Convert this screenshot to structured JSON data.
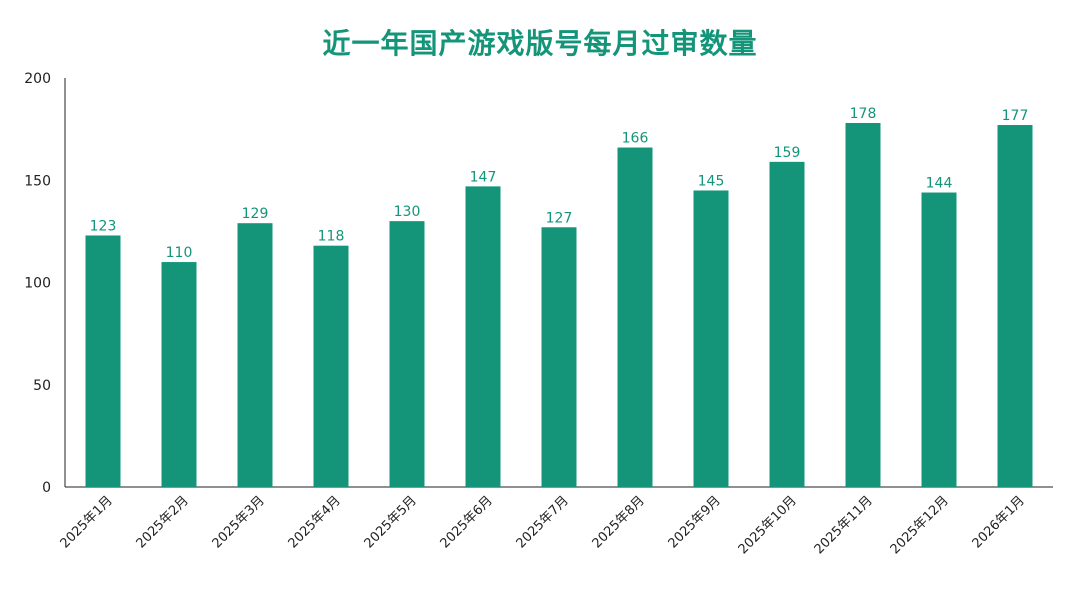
{
  "title": "近一年国产游戏版号每月过审数量",
  "colors": {
    "bar": "#14957a",
    "title": "#14957a",
    "axis": "#222222",
    "data_label": "#14957a"
  },
  "chart_data": {
    "type": "bar",
    "title": "近一年国产游戏版号每月过审数量",
    "categories": [
      "2025年1月",
      "2025年2月",
      "2025年3月",
      "2025年4月",
      "2025年5月",
      "2025年6月",
      "2025年7月",
      "2025年8月",
      "2025年9月",
      "2025年10月",
      "2025年11月",
      "2025年12月",
      "2026年1月"
    ],
    "values": [
      123,
      110,
      129,
      118,
      130,
      147,
      127,
      166,
      145,
      159,
      178,
      144,
      177
    ],
    "xlabel": "",
    "ylabel": "",
    "ylim": [
      0,
      200
    ],
    "yticks": [
      0,
      50,
      100,
      150,
      200
    ],
    "grid": false,
    "legend": "none",
    "data_labels": true
  }
}
